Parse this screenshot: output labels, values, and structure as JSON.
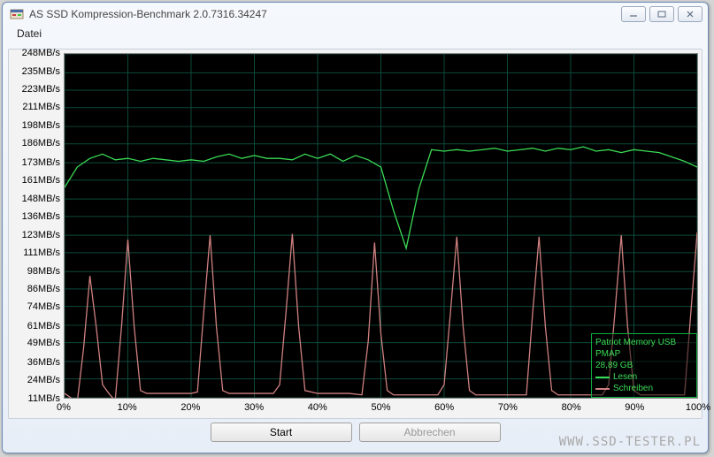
{
  "window": {
    "title": "AS SSD Kompression-Benchmark 2.0.7316.34247"
  },
  "menu": {
    "file": "Datei"
  },
  "chart": {
    "background": "#000000",
    "grid_color": "#0d4a3a",
    "y_unit": "MB/s",
    "y_ticks": [
      11,
      24,
      36,
      49,
      61,
      74,
      86,
      98,
      111,
      123,
      136,
      148,
      161,
      173,
      186,
      198,
      211,
      223,
      235,
      248
    ],
    "y_min": 11,
    "y_max": 248,
    "x_ticks": [
      0,
      10,
      20,
      30,
      40,
      50,
      60,
      70,
      80,
      90,
      100
    ],
    "x_unit": "%",
    "x_min": 0,
    "x_max": 100,
    "series": [
      {
        "name": "Lesen",
        "color": "#3bdb55",
        "points": [
          [
            0,
            156
          ],
          [
            2,
            170
          ],
          [
            4,
            176
          ],
          [
            6,
            179
          ],
          [
            8,
            175
          ],
          [
            10,
            176
          ],
          [
            12,
            174
          ],
          [
            14,
            176
          ],
          [
            16,
            175
          ],
          [
            18,
            174
          ],
          [
            20,
            175
          ],
          [
            22,
            174
          ],
          [
            24,
            177
          ],
          [
            26,
            179
          ],
          [
            28,
            176
          ],
          [
            30,
            178
          ],
          [
            32,
            176
          ],
          [
            34,
            176
          ],
          [
            36,
            175
          ],
          [
            38,
            179
          ],
          [
            40,
            176
          ],
          [
            42,
            179
          ],
          [
            44,
            174
          ],
          [
            46,
            178
          ],
          [
            48,
            175
          ],
          [
            50,
            170
          ],
          [
            52,
            140
          ],
          [
            54,
            114
          ],
          [
            56,
            155
          ],
          [
            58,
            182
          ],
          [
            60,
            181
          ],
          [
            62,
            182
          ],
          [
            64,
            181
          ],
          [
            66,
            182
          ],
          [
            68,
            183
          ],
          [
            70,
            181
          ],
          [
            72,
            182
          ],
          [
            74,
            183
          ],
          [
            76,
            181
          ],
          [
            78,
            183
          ],
          [
            80,
            182
          ],
          [
            82,
            184
          ],
          [
            84,
            181
          ],
          [
            86,
            182
          ],
          [
            88,
            180
          ],
          [
            90,
            182
          ],
          [
            92,
            181
          ],
          [
            94,
            180
          ],
          [
            96,
            177
          ],
          [
            98,
            174
          ],
          [
            100,
            170
          ]
        ]
      },
      {
        "name": "Schreiben",
        "color": "#d08080",
        "points": [
          [
            0,
            14
          ],
          [
            2,
            8
          ],
          [
            3,
            45
          ],
          [
            4,
            95
          ],
          [
            5,
            60
          ],
          [
            6,
            20
          ],
          [
            7,
            14
          ],
          [
            8,
            9
          ],
          [
            9,
            60
          ],
          [
            10,
            120
          ],
          [
            11,
            60
          ],
          [
            12,
            16
          ],
          [
            13,
            14
          ],
          [
            15,
            14
          ],
          [
            18,
            14
          ],
          [
            20,
            14
          ],
          [
            21,
            15
          ],
          [
            22,
            70
          ],
          [
            23,
            123
          ],
          [
            24,
            60
          ],
          [
            25,
            16
          ],
          [
            26,
            14
          ],
          [
            30,
            14
          ],
          [
            33,
            14
          ],
          [
            34,
            20
          ],
          [
            35,
            70
          ],
          [
            36,
            124
          ],
          [
            37,
            60
          ],
          [
            38,
            16
          ],
          [
            40,
            14
          ],
          [
            45,
            14
          ],
          [
            47,
            13
          ],
          [
            48,
            50
          ],
          [
            49,
            118
          ],
          [
            50,
            55
          ],
          [
            51,
            16
          ],
          [
            52,
            13
          ],
          [
            55,
            13
          ],
          [
            59,
            13
          ],
          [
            60,
            20
          ],
          [
            61,
            70
          ],
          [
            62,
            122
          ],
          [
            63,
            60
          ],
          [
            64,
            16
          ],
          [
            65,
            13
          ],
          [
            70,
            13
          ],
          [
            73,
            13
          ],
          [
            74,
            70
          ],
          [
            75,
            122
          ],
          [
            76,
            60
          ],
          [
            77,
            16
          ],
          [
            78,
            13
          ],
          [
            82,
            13
          ],
          [
            85,
            13
          ],
          [
            86,
            20
          ],
          [
            87,
            70
          ],
          [
            88,
            123
          ],
          [
            89,
            60
          ],
          [
            90,
            16
          ],
          [
            91,
            13
          ],
          [
            95,
            13
          ],
          [
            98,
            13
          ],
          [
            99,
            70
          ],
          [
            100,
            125
          ]
        ]
      }
    ]
  },
  "legend": {
    "device": "Patriot Memory USB",
    "model": "PMAP",
    "size": "28,89 GB",
    "read_label": "Lesen",
    "write_label": "Schreiben"
  },
  "buttons": {
    "start": "Start",
    "cancel": "Abbrechen"
  },
  "watermark": "www.ssd-tester.pl"
}
